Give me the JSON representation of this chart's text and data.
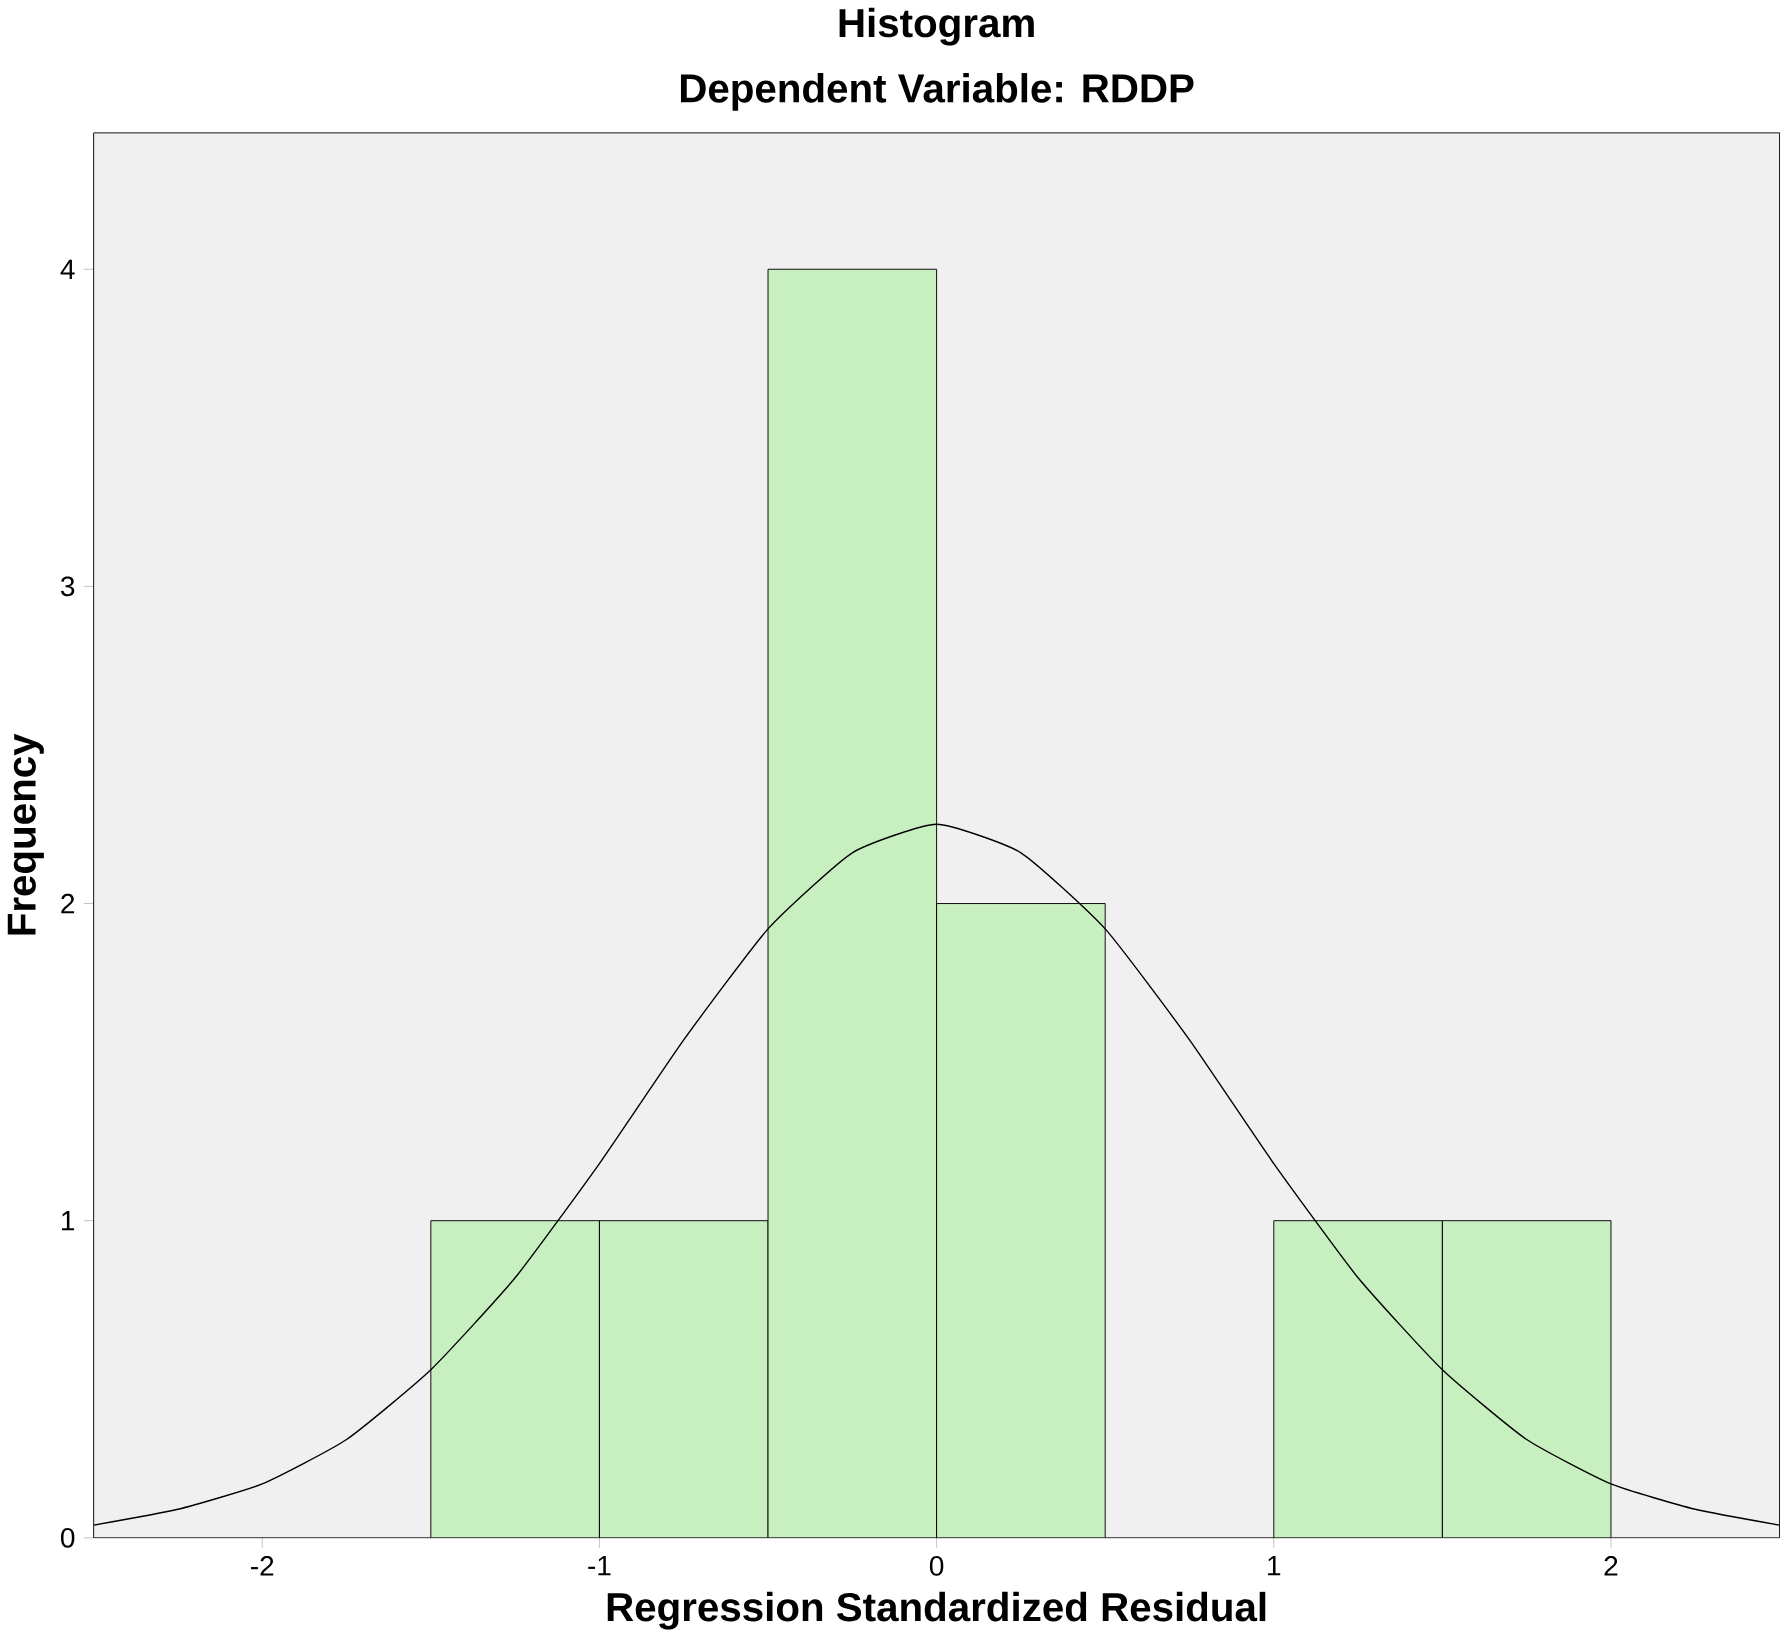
{
  "chart_data": {
    "type": "histogram",
    "title": "Histogram",
    "subtitle": "Dependent Variable: RDDP",
    "xlabel": "Regression Standardized Residual",
    "ylabel": "Frequency",
    "bins": [
      -1.5,
      -1.0,
      -0.5,
      0.0,
      0.5,
      1.0,
      1.5,
      2.0
    ],
    "values": [
      1,
      1,
      4,
      2,
      0,
      1,
      1
    ],
    "color": "#c8efbf",
    "series": [
      {
        "type": "line",
        "color": "#000000",
        "x": [
          -2.5,
          -2.25,
          -2.0,
          -1.75,
          -1.5,
          -1.25,
          -1.0,
          -0.75,
          -0.5,
          -0.25,
          0.0,
          0.25,
          0.5,
          0.75,
          1.0,
          1.25,
          1.5,
          1.75,
          2.0,
          2.25,
          2.5
        ],
        "values": [
          0.04,
          0.09,
          0.17,
          0.31,
          0.53,
          0.82,
          1.18,
          1.57,
          1.92,
          2.16,
          2.25,
          2.16,
          1.92,
          1.57,
          1.18,
          0.82,
          0.53,
          0.31,
          0.17,
          0.09,
          0.04
        ]
      }
    ],
    "xlim": [
      -2.5,
      2.5
    ],
    "ylim": [
      0,
      4.43
    ],
    "xticks": [
      -2,
      -1,
      0,
      1,
      2
    ],
    "yticks": [
      0,
      1,
      2,
      3,
      4
    ],
    "grid": false
  }
}
